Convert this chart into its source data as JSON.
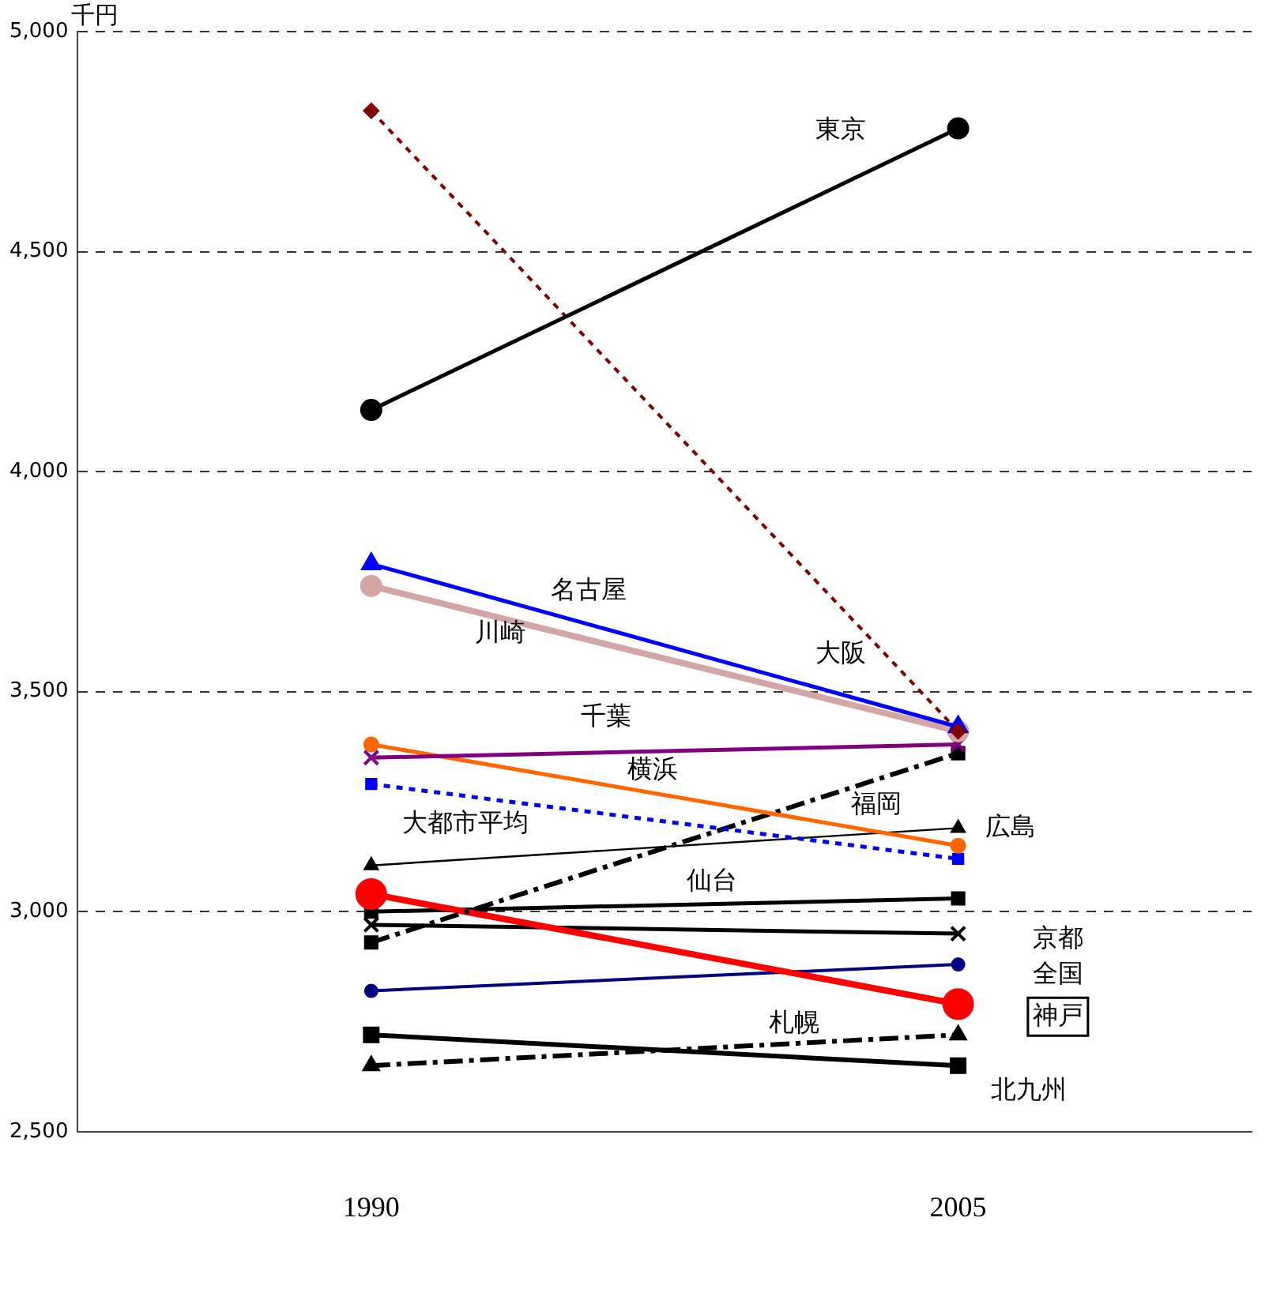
{
  "chart_data": {
    "type": "line",
    "ylabel": "千円",
    "categories": [
      "1990",
      "2005"
    ],
    "ylim": [
      2500,
      5000
    ],
    "yticks": [
      {
        "value": 2500,
        "label": "2,500"
      },
      {
        "value": 3000,
        "label": "3,000"
      },
      {
        "value": 3500,
        "label": "3,500"
      },
      {
        "value": 4000,
        "label": "4,000"
      },
      {
        "value": 4500,
        "label": "4,500"
      },
      {
        "value": 5000,
        "label": "5,000"
      }
    ],
    "grid": "y",
    "legend": false,
    "series": [
      {
        "name": "東京",
        "color": "#000000",
        "values": [
          4140,
          4780
        ],
        "marker": "circle",
        "line_style": "solid"
      },
      {
        "name": "大阪",
        "color": "#800000",
        "values": [
          4820,
          3410
        ],
        "marker": "diamond",
        "line_style": "dotted"
      },
      {
        "name": "名古屋",
        "color": "#0000ff",
        "values": [
          3790,
          3420
        ],
        "marker": "triangle",
        "line_style": "solid"
      },
      {
        "name": "川崎",
        "color": "#d4a5a5",
        "values": [
          3740,
          3410
        ],
        "marker": "circle",
        "line_style": "solid"
      },
      {
        "name": "千葉",
        "color": "#800080",
        "values": [
          3350,
          3380
        ],
        "marker": "cross",
        "line_style": "solid"
      },
      {
        "name": "横浜",
        "color": "#ff6600",
        "values": [
          3380,
          3150
        ],
        "marker": "circle",
        "line_style": "solid"
      },
      {
        "name": "大都市平均",
        "color": "#0000ff",
        "values": [
          3290,
          3120
        ],
        "marker": "square",
        "line_style": "dotted"
      },
      {
        "name": "広島",
        "color": "#000000",
        "values": [
          3105,
          3190
        ],
        "marker": "triangle",
        "line_style": "solid"
      },
      {
        "name": "福岡",
        "color": "#000000",
        "values": [
          2930,
          3360
        ],
        "marker": "square",
        "line_style": "dashed"
      },
      {
        "name": "神戸",
        "color": "#ff0000",
        "values": [
          3040,
          2790
        ],
        "marker": "circle",
        "line_style": "solid"
      },
      {
        "name": "仙台",
        "color": "#000000",
        "values": [
          3000,
          3030
        ],
        "marker": "square",
        "line_style": "solid"
      },
      {
        "name": "京都",
        "color": "#000000",
        "values": [
          2970,
          2950
        ],
        "marker": "cross",
        "line_style": "solid"
      },
      {
        "name": "全国",
        "color": "#000080",
        "values": [
          2820,
          2880
        ],
        "marker": "circle",
        "line_style": "solid"
      },
      {
        "name": "北九州",
        "color": "#000000",
        "values": [
          2720,
          2650
        ],
        "marker": "square",
        "line_style": "solid"
      },
      {
        "name": "札幌",
        "color": "#000000",
        "values": [
          2650,
          2720
        ],
        "marker": "triangle",
        "line_style": "dashed"
      }
    ]
  }
}
